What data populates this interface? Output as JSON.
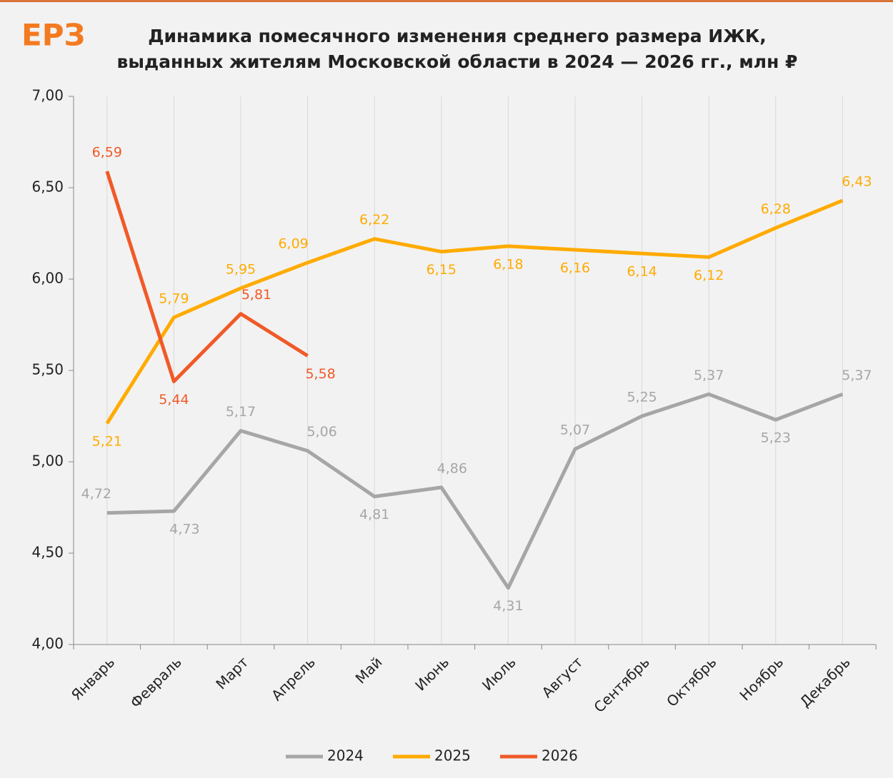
{
  "logo": "ЕРЗ",
  "chart_data": {
    "type": "line",
    "title": [
      "Динамика помесячного изменения среднего размера ИЖК,",
      "выданных жителям Московской области в 2024 — 2026 гг., млн ₽"
    ],
    "categories": [
      "Январь",
      "Февраль",
      "Март",
      "Апрель",
      "Май",
      "Июнь",
      "Июль",
      "Август",
      "Сентябрь",
      "Октябрь",
      "Ноябрь",
      "Декабрь"
    ],
    "series": [
      {
        "name": "2024",
        "color": "#a6a6a6",
        "values": [
          4.72,
          4.73,
          5.17,
          5.06,
          4.81,
          4.86,
          4.31,
          5.07,
          5.25,
          5.37,
          5.23,
          5.37
        ],
        "value_labels": [
          "4,72",
          "4,73",
          "5,17",
          "5,06",
          "4,81",
          "4,86",
          "4,31",
          "5,07",
          "5,25",
          "5,37",
          "5,23",
          "5,37"
        ]
      },
      {
        "name": "2025",
        "color": "#ffab00",
        "values": [
          5.21,
          5.79,
          5.95,
          6.09,
          6.22,
          6.15,
          6.18,
          6.16,
          6.14,
          6.12,
          6.28,
          6.43
        ],
        "value_labels": [
          "5,21",
          "5,79",
          "5,95",
          "6,09",
          "6,22",
          "6,15",
          "6,18",
          "6,16",
          "6,14",
          "6,12",
          "6,28",
          "6,43"
        ]
      },
      {
        "name": "2026",
        "color": "#f05a28",
        "values": [
          6.59,
          5.44,
          5.81,
          5.58,
          null,
          null,
          null,
          null,
          null,
          null,
          null,
          null
        ],
        "value_labels": [
          "6,59",
          "5,44",
          "5,81",
          "5,58",
          null,
          null,
          null,
          null,
          null,
          null,
          null,
          null
        ]
      }
    ],
    "ylim": [
      4,
      7
    ],
    "yticks": [
      {
        "value": 4,
        "label": "4,00"
      },
      {
        "value": 4.5,
        "label": "4,50"
      },
      {
        "value": 5,
        "label": "5,00"
      },
      {
        "value": 5.5,
        "label": "5,50"
      },
      {
        "value": 6,
        "label": "6,00"
      },
      {
        "value": 6.5,
        "label": "6,50"
      },
      {
        "value": 7,
        "label": "7,00"
      }
    ],
    "legend": "bottom"
  }
}
